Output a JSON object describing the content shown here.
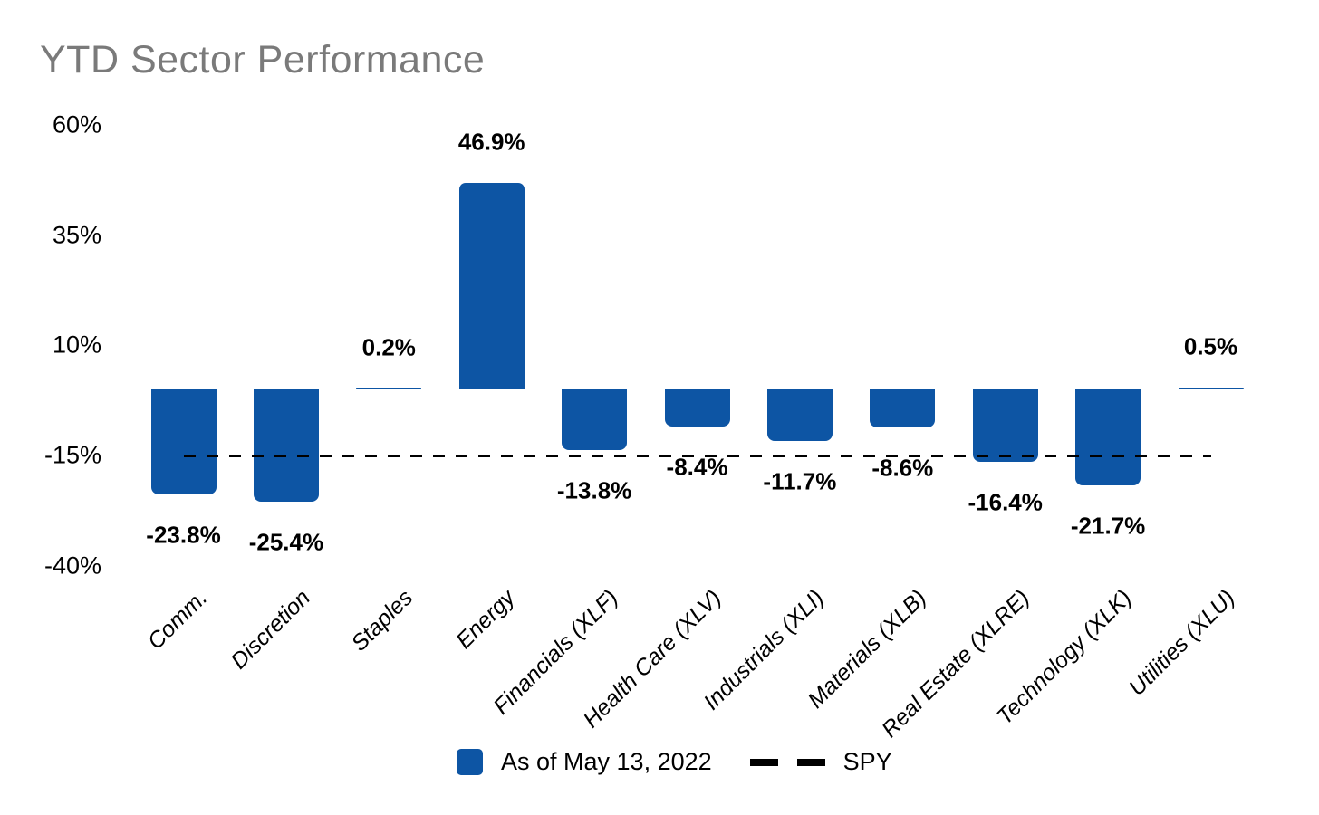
{
  "title": "YTD Sector Performance",
  "colors": {
    "bar": "#0D55A4",
    "title_text": "#7a7a7a",
    "spy_line": "#000000",
    "label_text": "#000000"
  },
  "chart_data": {
    "type": "bar",
    "title": "YTD Sector Performance",
    "categories": [
      "Comm.",
      "Discretion",
      "Staples",
      "Energy",
      "Financials (XLF)",
      "Health Care (XLV)",
      "Industrials (XLI)",
      "Materials (XLB)",
      "Real Estate (XLRE)",
      "Technology (XLK)",
      "Utilities (XLU)"
    ],
    "values": [
      -23.8,
      -25.4,
      0.2,
      46.9,
      -13.8,
      -8.4,
      -11.7,
      -8.6,
      -16.4,
      -21.7,
      0.5
    ],
    "value_labels": [
      "-23.8%",
      "-25.4%",
      "0.2%",
      "46.9%",
      "-13.8%",
      "-8.4%",
      "-11.7%",
      "-8.6%",
      "-16.4%",
      "-21.7%",
      "0.5%"
    ],
    "yticks": {
      "values": [
        60,
        35,
        10,
        -15,
        -40
      ],
      "labels": [
        "60%",
        "35%",
        "10%",
        "-15%",
        "-40%"
      ]
    },
    "ylim": [
      -47,
      62
    ],
    "grid": false,
    "reference_line": {
      "name": "SPY",
      "value": -15,
      "style": "dashed"
    },
    "legend": {
      "position": "bottom",
      "bars_label": "As of May 13, 2022",
      "spy_label": "SPY"
    }
  }
}
